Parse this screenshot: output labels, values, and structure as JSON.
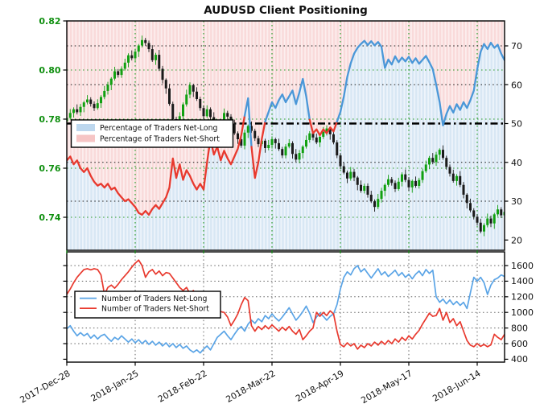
{
  "title": "AUDUSD Client Positioning",
  "top_legend": {
    "net_long": "Percentage of Traders Net-Long",
    "net_short": "Percentage of Traders Net-Short"
  },
  "bottom_legend": {
    "net_long": "Number of Traders Net-Long",
    "net_short": "Number of Traders Net-Short"
  },
  "colors": {
    "accent_green": "#0f8f0f",
    "grid_green": "#2f9e2f",
    "candle_up": "#11a011",
    "candle_down": "#1a1a1a",
    "pct_blue": "#4a97d8",
    "pct_red": "#e8392e",
    "count_blue": "#5aa4e6",
    "count_red": "#e8392e",
    "fill_pink": "#f9dada",
    "fill_blue": "#d8e7f4",
    "legend_patch_long": "#bdd7ee",
    "legend_patch_short": "#f6c5c5",
    "reference_line": "#000000"
  },
  "chart_data": [
    {
      "type": "candlestick",
      "panel": "top",
      "title": "AUDUSD Client Positioning",
      "x_tick_labels": [
        "2017-Dec-28",
        "2018-Jan-25",
        "2018-Feb-22",
        "2018-Mar-22",
        "2018-Apr-19",
        "2018-May-17",
        "2018-Jun-14"
      ],
      "x_tick_days": [
        0,
        20,
        40,
        60,
        80,
        100,
        120
      ],
      "price_axis": {
        "side": "left",
        "color": "#0f8f0f",
        "ticks": [
          0.82,
          0.8,
          0.78,
          0.76,
          0.74
        ],
        "ylim": [
          0.7265,
          0.82
        ]
      },
      "pct_axis": {
        "side": "right",
        "color": "#111111",
        "ticks": [
          70,
          60,
          50,
          40,
          30,
          20
        ],
        "ylim": [
          17.5,
          76.5
        ]
      },
      "grid": {
        "price_gridlines": [
          0.8,
          0.78,
          0.76,
          0.74
        ],
        "pct_gridlines": [
          70,
          60,
          40,
          30
        ],
        "reference_level": 50,
        "vertical_at_ticks": true
      },
      "fills_note": "pink band above sentiment line = net-short share, light blue below = net-long share",
      "open_first": 0.779,
      "closes": [
        0.7805,
        0.7825,
        0.784,
        0.7828,
        0.785,
        0.7868,
        0.788,
        0.7862,
        0.7845,
        0.7865,
        0.789,
        0.7915,
        0.794,
        0.7965,
        0.7995,
        0.798,
        0.8005,
        0.803,
        0.806,
        0.8048,
        0.8075,
        0.81,
        0.8122,
        0.811,
        0.8085,
        0.804,
        0.8062,
        0.8005,
        0.796,
        0.7925,
        0.7862,
        0.78,
        0.7778,
        0.7812,
        0.786,
        0.79,
        0.7938,
        0.7912,
        0.7882,
        0.7845,
        0.7812,
        0.784,
        0.7808,
        0.7782,
        0.7758,
        0.7788,
        0.7825,
        0.781,
        0.7782,
        0.7742,
        0.7718,
        0.7692,
        0.7745,
        0.7772,
        0.7752,
        0.7722,
        0.7698,
        0.7712,
        0.7682,
        0.7695,
        0.7718,
        0.7702,
        0.7678,
        0.7652,
        0.7688,
        0.7702,
        0.7658,
        0.7635,
        0.7662,
        0.7688,
        0.7715,
        0.7742,
        0.7725,
        0.7705,
        0.7728,
        0.7748,
        0.7762,
        0.7738,
        0.7705,
        0.7652,
        0.7608,
        0.7582,
        0.7558,
        0.7585,
        0.7562,
        0.7532,
        0.7508,
        0.7528,
        0.7492,
        0.7465,
        0.7442,
        0.7475,
        0.7508,
        0.7532,
        0.7555,
        0.754,
        0.7515,
        0.7545,
        0.7575,
        0.7552,
        0.7522,
        0.7548,
        0.7528,
        0.7552,
        0.7588,
        0.7615,
        0.7642,
        0.7625,
        0.7655,
        0.7675,
        0.7642,
        0.7605,
        0.7578,
        0.7548,
        0.7568,
        0.7532,
        0.7492,
        0.7458,
        0.7428,
        0.7402,
        0.7378,
        0.7342,
        0.7368,
        0.7395,
        0.7375,
        0.7412,
        0.7432,
        0.7408,
        0.7422
      ],
      "pct_net_long": [
        40.5,
        41.5,
        39.5,
        40.5,
        38.5,
        37.5,
        38.5,
        36.5,
        35,
        34,
        34.5,
        33.5,
        34.5,
        33,
        33.5,
        32,
        31,
        30,
        30.5,
        29.5,
        28.5,
        27,
        26.5,
        27.5,
        26.5,
        28,
        29,
        28,
        29.5,
        31,
        33.5,
        41,
        36,
        39.5,
        35.5,
        38,
        36.5,
        34.5,
        33,
        34.5,
        33,
        40,
        46,
        42,
        44,
        40.5,
        43,
        41,
        39.5,
        41.5,
        43.5,
        47,
        52,
        56.5,
        44,
        36,
        40,
        46,
        50.5,
        53,
        55.5,
        54,
        56,
        57.5,
        55.5,
        57,
        58.5,
        55,
        58,
        61.5,
        57,
        51,
        47.5,
        48.5,
        47,
        48.5,
        47.5,
        49,
        48,
        50.5,
        53,
        57,
        62,
        65.5,
        68,
        69.5,
        70.5,
        71.3,
        70.2,
        71.2,
        70.1,
        71,
        69.8,
        64.3,
        66.5,
        65.2,
        67.3,
        65.8,
        67,
        66,
        67.2,
        65.6,
        66.8,
        65.4,
        66.4,
        67.4,
        65.8,
        64,
        60,
        55.5,
        49.5,
        52.5,
        54.5,
        52.8,
        55,
        53.5,
        55.5,
        54,
        56,
        58.5,
        64,
        68.5,
        70.5,
        69.2,
        70.8,
        69.5,
        70.3,
        68,
        66.3
      ],
      "line_color_rule": "blue when pct_net_long >= 50, red when < 50"
    },
    {
      "type": "line",
      "panel": "bottom",
      "count_axis": {
        "side": "right",
        "ticks": [
          1600,
          1400,
          1200,
          1000,
          800,
          600,
          400
        ],
        "ylim": [
          360,
          1775
        ]
      },
      "grid": {
        "count_gridlines": [
          1600,
          1400,
          1200,
          1000,
          800,
          600
        ],
        "vertical_at_ticks": true
      },
      "series": [
        {
          "name": "Number of Traders Net-Long",
          "color": "#5aa4e6",
          "values": [
            790,
            830,
            760,
            700,
            740,
            700,
            730,
            670,
            710,
            660,
            700,
            720,
            670,
            630,
            680,
            650,
            700,
            660,
            620,
            660,
            610,
            650,
            600,
            640,
            590,
            630,
            580,
            620,
            570,
            610,
            560,
            600,
            550,
            590,
            540,
            570,
            520,
            490,
            520,
            480,
            530,
            570,
            520,
            600,
            680,
            720,
            760,
            700,
            650,
            720,
            780,
            820,
            760,
            850,
            900,
            860,
            920,
            880,
            960,
            920,
            980,
            930,
            890,
            940,
            1000,
            1060,
            980,
            900,
            950,
            1010,
            1080,
            990,
            870,
            940,
            990,
            950,
            900,
            950,
            980,
            1100,
            1300,
            1450,
            1520,
            1480,
            1560,
            1600,
            1520,
            1560,
            1500,
            1440,
            1500,
            1560,
            1480,
            1520,
            1460,
            1500,
            1540,
            1470,
            1510,
            1450,
            1490,
            1430,
            1490,
            1530,
            1470,
            1550,
            1500,
            1540,
            1200,
            1130,
            1170,
            1110,
            1160,
            1100,
            1140,
            1090,
            1130,
            1050,
            1250,
            1450,
            1400,
            1450,
            1380,
            1230,
            1350,
            1420,
            1440,
            1480,
            1460
          ]
        },
        {
          "name": "Number of Traders Net-Short",
          "color": "#e8392e",
          "values": [
            1230,
            1300,
            1380,
            1450,
            1500,
            1550,
            1560,
            1545,
            1560,
            1550,
            1480,
            1230,
            1320,
            1350,
            1310,
            1360,
            1420,
            1470,
            1520,
            1580,
            1630,
            1670,
            1600,
            1450,
            1520,
            1550,
            1490,
            1530,
            1470,
            1510,
            1500,
            1440,
            1380,
            1320,
            1280,
            1320,
            1240,
            1280,
            1200,
            1160,
            1120,
            1060,
            1100,
            1020,
            980,
            1010,
            1000,
            940,
            830,
            900,
            980,
            1100,
            1190,
            1150,
            830,
            760,
            820,
            780,
            830,
            790,
            840,
            800,
            760,
            810,
            770,
            820,
            760,
            720,
            780,
            650,
            700,
            760,
            800,
            1000,
            950,
            1000,
            960,
            1020,
            980,
            760,
            590,
            560,
            610,
            570,
            600,
            530,
            580,
            550,
            600,
            570,
            620,
            580,
            630,
            590,
            640,
            600,
            660,
            620,
            680,
            640,
            700,
            660,
            720,
            770,
            850,
            920,
            990,
            950,
            960,
            1050,
            900,
            1000,
            870,
            920,
            830,
            880,
            760,
            640,
            580,
            560,
            600,
            565,
            590,
            560,
            585,
            720,
            680,
            650,
            720
          ]
        }
      ]
    }
  ]
}
